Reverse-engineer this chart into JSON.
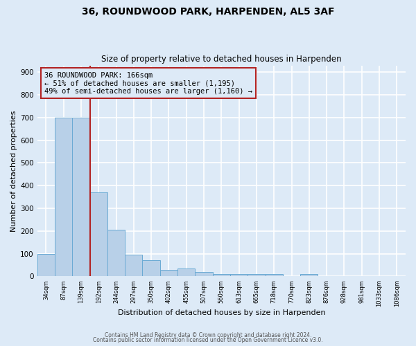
{
  "title": "36, ROUNDWOOD PARK, HARPENDEN, AL5 3AF",
  "subtitle": "Size of property relative to detached houses in Harpenden",
  "xlabel": "Distribution of detached houses by size in Harpenden",
  "ylabel": "Number of detached properties",
  "bar_labels": [
    "34sqm",
    "87sqm",
    "139sqm",
    "192sqm",
    "244sqm",
    "297sqm",
    "350sqm",
    "402sqm",
    "455sqm",
    "507sqm",
    "560sqm",
    "613sqm",
    "665sqm",
    "718sqm",
    "770sqm",
    "823sqm",
    "876sqm",
    "928sqm",
    "981sqm",
    "1033sqm",
    "1086sqm"
  ],
  "bar_values": [
    100,
    700,
    700,
    370,
    205,
    95,
    70,
    30,
    35,
    20,
    10,
    10,
    10,
    10,
    0,
    10,
    0,
    0,
    0,
    0,
    0
  ],
  "bar_color": "#b8d0e8",
  "bar_edge_color": "#6aaad4",
  "background_color": "#ddeaf7",
  "grid_color": "#ffffff",
  "vline_x": 2.5,
  "vline_color": "#b22222",
  "annotation_text": "36 ROUNDWOOD PARK: 166sqm\n← 51% of detached houses are smaller (1,195)\n49% of semi-detached houses are larger (1,160) →",
  "annotation_box_edge_color": "#b22222",
  "ylim": [
    0,
    930
  ],
  "yticks": [
    0,
    100,
    200,
    300,
    400,
    500,
    600,
    700,
    800,
    900
  ],
  "footer_line1": "Contains HM Land Registry data © Crown copyright and database right 2024.",
  "footer_line2": "Contains public sector information licensed under the Open Government Licence v3.0."
}
